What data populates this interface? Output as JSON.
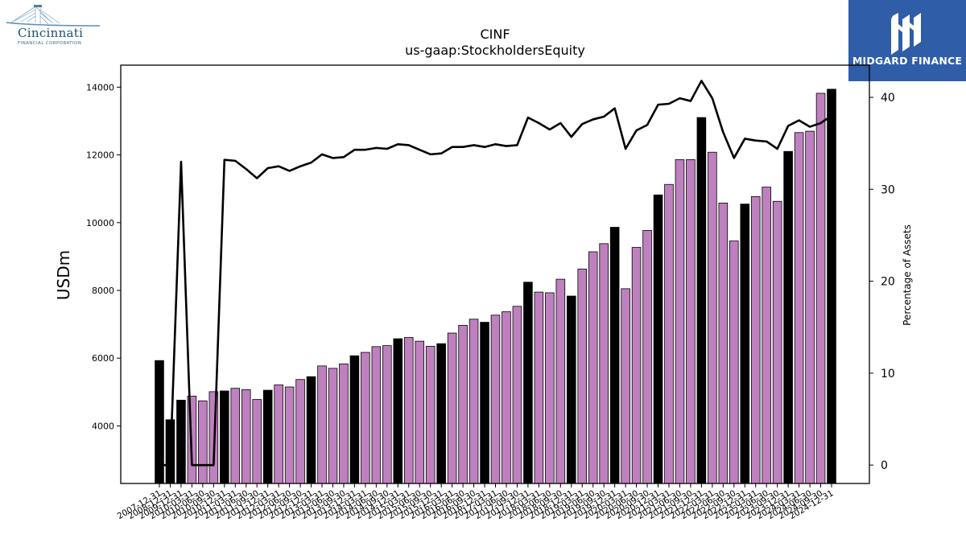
{
  "logos": {
    "left": {
      "name": "Cincinnati",
      "subtitle": "FINANCIAL CORPORATION"
    },
    "right": {
      "name": "MIDGARD FINANCE"
    }
  },
  "colors": {
    "highlight": "#000000",
    "regular": "#bf80bf",
    "line": "#000000"
  },
  "chart_data": {
    "type": "bar",
    "title": "CINF",
    "subtitle": "us-gaap:StockholdersEquity",
    "ylabel": "USDm",
    "y2label": "Percentage of Assets",
    "ylim": [
      2300,
      14650
    ],
    "y2lim": [
      -2,
      43.5
    ],
    "yticks": [
      4000,
      6000,
      8000,
      10000,
      12000,
      14000
    ],
    "y2ticks": [
      0,
      10,
      20,
      30,
      40
    ],
    "grid": false,
    "categories": [
      "2007-12-31",
      "2008-12-31",
      "2009-12-31",
      "2010-03-31",
      "2010-06-30",
      "2010-09-30",
      "2010-12-31",
      "2011-03-31",
      "2011-06-30",
      "2011-09-30",
      "2011-12-31",
      "2012-03-31",
      "2012-06-30",
      "2012-09-30",
      "2012-12-31",
      "2013-03-31",
      "2013-06-30",
      "2013-09-30",
      "2013-12-31",
      "2014-03-31",
      "2014-06-30",
      "2014-09-30",
      "2014-12-31",
      "2015-03-31",
      "2015-06-30",
      "2015-09-30",
      "2015-12-31",
      "2016-03-31",
      "2016-06-30",
      "2016-09-30",
      "2016-12-31",
      "2017-03-31",
      "2017-06-30",
      "2017-09-30",
      "2017-12-31",
      "2018-03-31",
      "2018-06-30",
      "2018-09-30",
      "2018-12-31",
      "2019-03-31",
      "2019-06-30",
      "2019-09-30",
      "2019-12-31",
      "2020-03-31",
      "2020-06-30",
      "2020-09-30",
      "2020-12-31",
      "2021-03-31",
      "2021-06-30",
      "2021-09-30",
      "2021-12-31",
      "2022-03-31",
      "2022-06-30",
      "2022-09-30",
      "2022-12-31",
      "2023-03-31",
      "2023-06-30",
      "2023-09-30",
      "2023-12-31",
      "2024-03-31",
      "2024-06-30",
      "2024-09-30",
      "2024-12-31"
    ],
    "xtick_labels": [
      "2007-12-31",
      "2008-12-31",
      "2009-12-31",
      "2010-03-31",
      "2010-06-30",
      "2010-09-30",
      "2010-12-31",
      "2011-03-31",
      "2011-06-30",
      "2011-09-30",
      "2011-12-31",
      "2012-03-31",
      "2012-06-30",
      "2012-09-30",
      "2012-12-31",
      "2013-03-31",
      "2013-06-30",
      "2013-09-30",
      "2013-12-31",
      "2014-03-31",
      "2014-06-30",
      "2014-09-30",
      "2014-12-31",
      "2015-03-31",
      "2015-06-30",
      "2015-09-30",
      "2015-12-31",
      "2016-03-31",
      "2016-06-30",
      "2016-09-30",
      "2016-12-31",
      "2017-03-31",
      "2017-06-30",
      "2017-09-30",
      "2017-12-31",
      "2018-03-31",
      "2018-06-30",
      "2018-09-30",
      "2018-12-31",
      "2019-03-31",
      "2019-06-30",
      "2019-09-30",
      "2019-12-31",
      "2020-03-31",
      "2020-06-30",
      "2020-09-30",
      "2020-12-31",
      "2021-03-31",
      "2021-06-30",
      "2021-09-30",
      "2021-12-31",
      "2022-03-31",
      "2022-06-30",
      "2022-09-30",
      "2022-12-31",
      "2023-03-31",
      "2023-06-30",
      "2023-09-30",
      "2023-12-31",
      "2024-03-31",
      "2024-06-30",
      "2024-09-30",
      "2024-12-31"
    ],
    "series": [
      {
        "type": "bar",
        "axis": "left",
        "values": [
          5929,
          4182,
          4760,
          4880,
          4740,
          5010,
          5032,
          5110,
          5070,
          4780,
          5053,
          5210,
          5150,
          5370,
          5453,
          5770,
          5700,
          5830,
          6070,
          6170,
          6340,
          6370,
          6573,
          6610,
          6500,
          6350,
          6427,
          6740,
          6970,
          7150,
          7060,
          7270,
          7370,
          7530,
          8243,
          7950,
          7930,
          8330,
          7833,
          8630,
          9140,
          9380,
          9864,
          8050,
          9270,
          9770,
          10819,
          11130,
          11860,
          11860,
          13104,
          12080,
          10580,
          9460,
          10549,
          10770,
          11050,
          10630,
          12103,
          12660,
          12700,
          13820,
          13940
        ],
        "highlight": [
          true,
          true,
          true,
          false,
          false,
          false,
          true,
          false,
          false,
          false,
          true,
          false,
          false,
          false,
          true,
          false,
          false,
          false,
          true,
          false,
          false,
          false,
          true,
          false,
          false,
          false,
          true,
          false,
          false,
          false,
          true,
          false,
          false,
          false,
          true,
          false,
          false,
          false,
          true,
          false,
          false,
          false,
          true,
          false,
          false,
          false,
          true,
          false,
          false,
          false,
          true,
          false,
          false,
          false,
          true,
          false,
          false,
          false,
          true,
          false,
          false,
          false,
          true
        ]
      },
      {
        "type": "line",
        "axis": "right",
        "values": [
          0,
          0,
          33,
          0,
          0,
          0,
          33.2,
          33.1,
          32.2,
          31.2,
          32.3,
          32.5,
          32.0,
          32.5,
          32.9,
          33.8,
          33.4,
          33.5,
          34.3,
          34.3,
          34.5,
          34.4,
          34.9,
          34.8,
          34.3,
          33.8,
          33.9,
          34.6,
          34.6,
          34.8,
          34.6,
          34.9,
          34.7,
          34.8,
          37.8,
          37.2,
          36.5,
          37.2,
          35.7,
          37.1,
          37.6,
          37.9,
          38.8,
          34.4,
          36.4,
          37.0,
          39.2,
          39.3,
          39.9,
          39.6,
          41.8,
          39.9,
          36.2,
          33.4,
          35.5,
          35.3,
          35.2,
          34.4,
          36.9,
          37.5,
          36.8,
          37.2,
          38.0
        ]
      }
    ]
  }
}
